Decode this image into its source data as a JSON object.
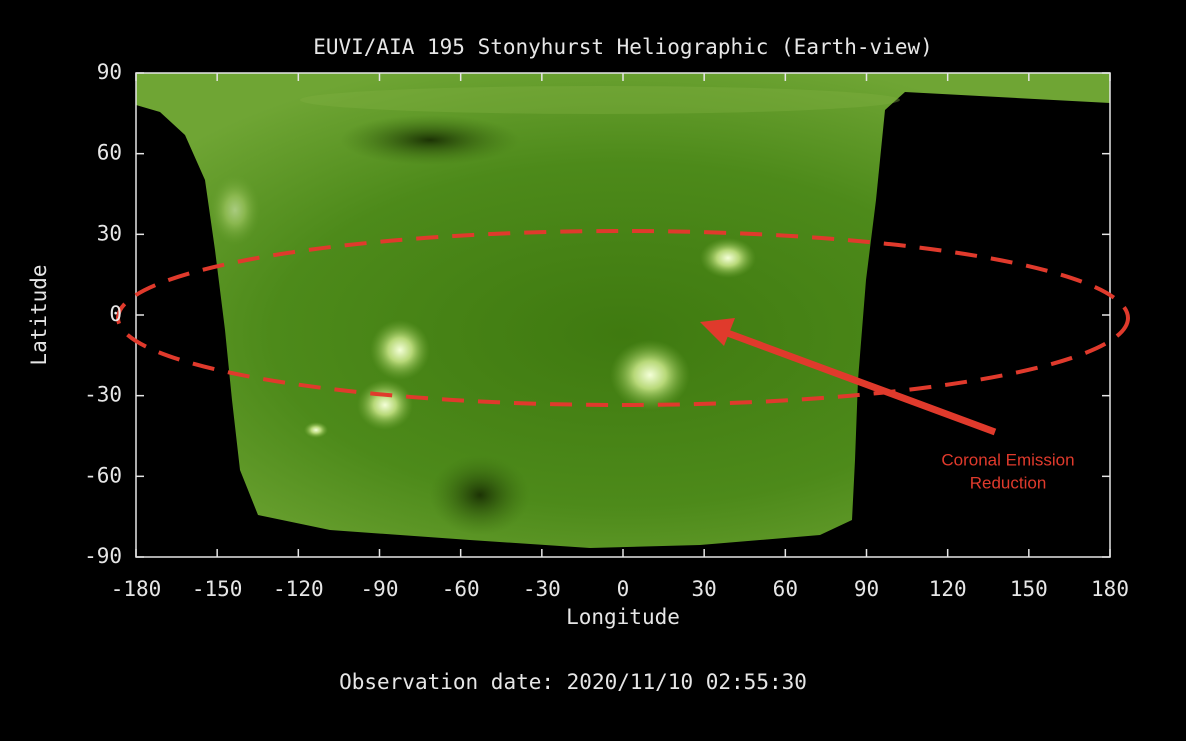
{
  "chart_data": {
    "type": "image",
    "title": "EUVI/AIA 195 Stonyhurst Heliographic (Earth-view)",
    "x_label": "Longitude",
    "y_label": "Latitude",
    "xlim": [
      -180,
      180
    ],
    "xticks": [
      -180,
      -150,
      -120,
      -90,
      -60,
      -30,
      0,
      30,
      60,
      90,
      120,
      150,
      180
    ],
    "ylim": [
      -90,
      90
    ],
    "yticks": [
      -90,
      -60,
      -30,
      0,
      30,
      60,
      90
    ],
    "annotation": [
      "Coronal Emission",
      "Reduction"
    ],
    "annotation_color": "#e03a2c",
    "footer": "Observation date: 2020/11/10 02:55:30"
  }
}
